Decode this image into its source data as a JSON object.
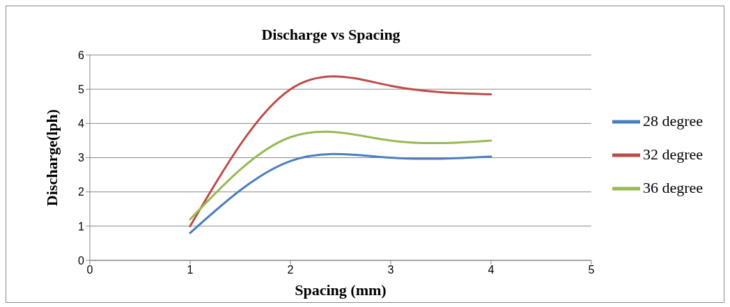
{
  "chart_data": {
    "type": "line",
    "title": "Discharge vs Spacing",
    "xlabel": "Spacing (mm)",
    "ylabel": "Discharge(lph)",
    "x": [
      1,
      2,
      3,
      4
    ],
    "series": [
      {
        "name": "28 degree",
        "color": "#4a7ebb",
        "values": [
          0.8,
          2.9,
          3.0,
          3.03
        ]
      },
      {
        "name": "32 degree",
        "color": "#be4b48",
        "values": [
          1.0,
          5.0,
          5.1,
          4.85
        ]
      },
      {
        "name": "36 degree",
        "color": "#98b954",
        "values": [
          1.2,
          3.6,
          3.5,
          3.5
        ]
      }
    ],
    "xlim": [
      0,
      5
    ],
    "xticks": [
      0,
      1,
      2,
      3,
      4,
      5
    ],
    "ylim": [
      0,
      6
    ],
    "yticks": [
      0,
      1,
      2,
      3,
      4,
      5,
      6
    ],
    "grid": "y",
    "legend": "right",
    "marker": "none",
    "line_style": "solid"
  }
}
